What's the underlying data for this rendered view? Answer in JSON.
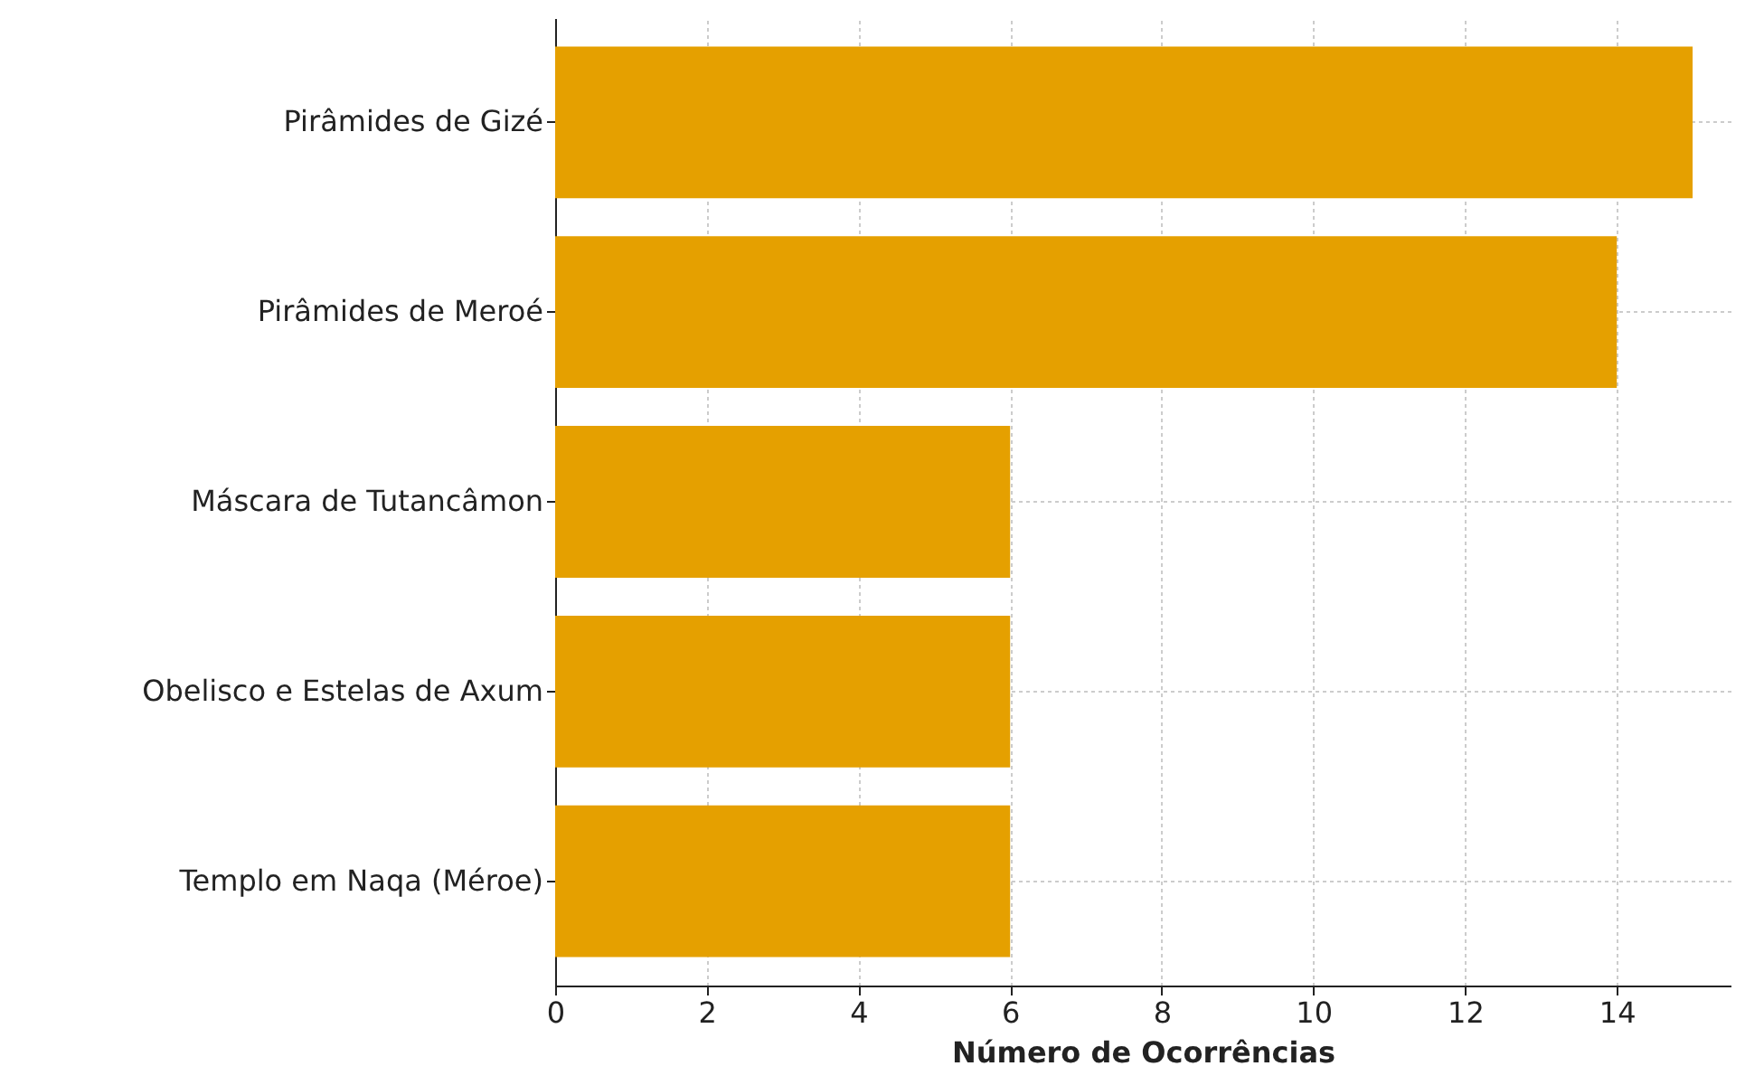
{
  "chart_data": {
    "type": "bar",
    "orientation": "horizontal",
    "xlabel": "Número de Ocorrências",
    "categories": [
      "Pirâmides de Gizé",
      "Pirâmides de Meroé",
      "Máscara de Tutancâmon",
      "Obelisco e Estelas de Axum",
      "Templo em Naqa (Méroe)"
    ],
    "values": [
      15,
      14,
      6,
      6,
      6
    ],
    "color": "#e5a000",
    "xlim": [
      0,
      15.5
    ],
    "xticks": [
      0,
      2,
      4,
      6,
      8,
      10,
      12,
      14
    ],
    "grid": true
  }
}
